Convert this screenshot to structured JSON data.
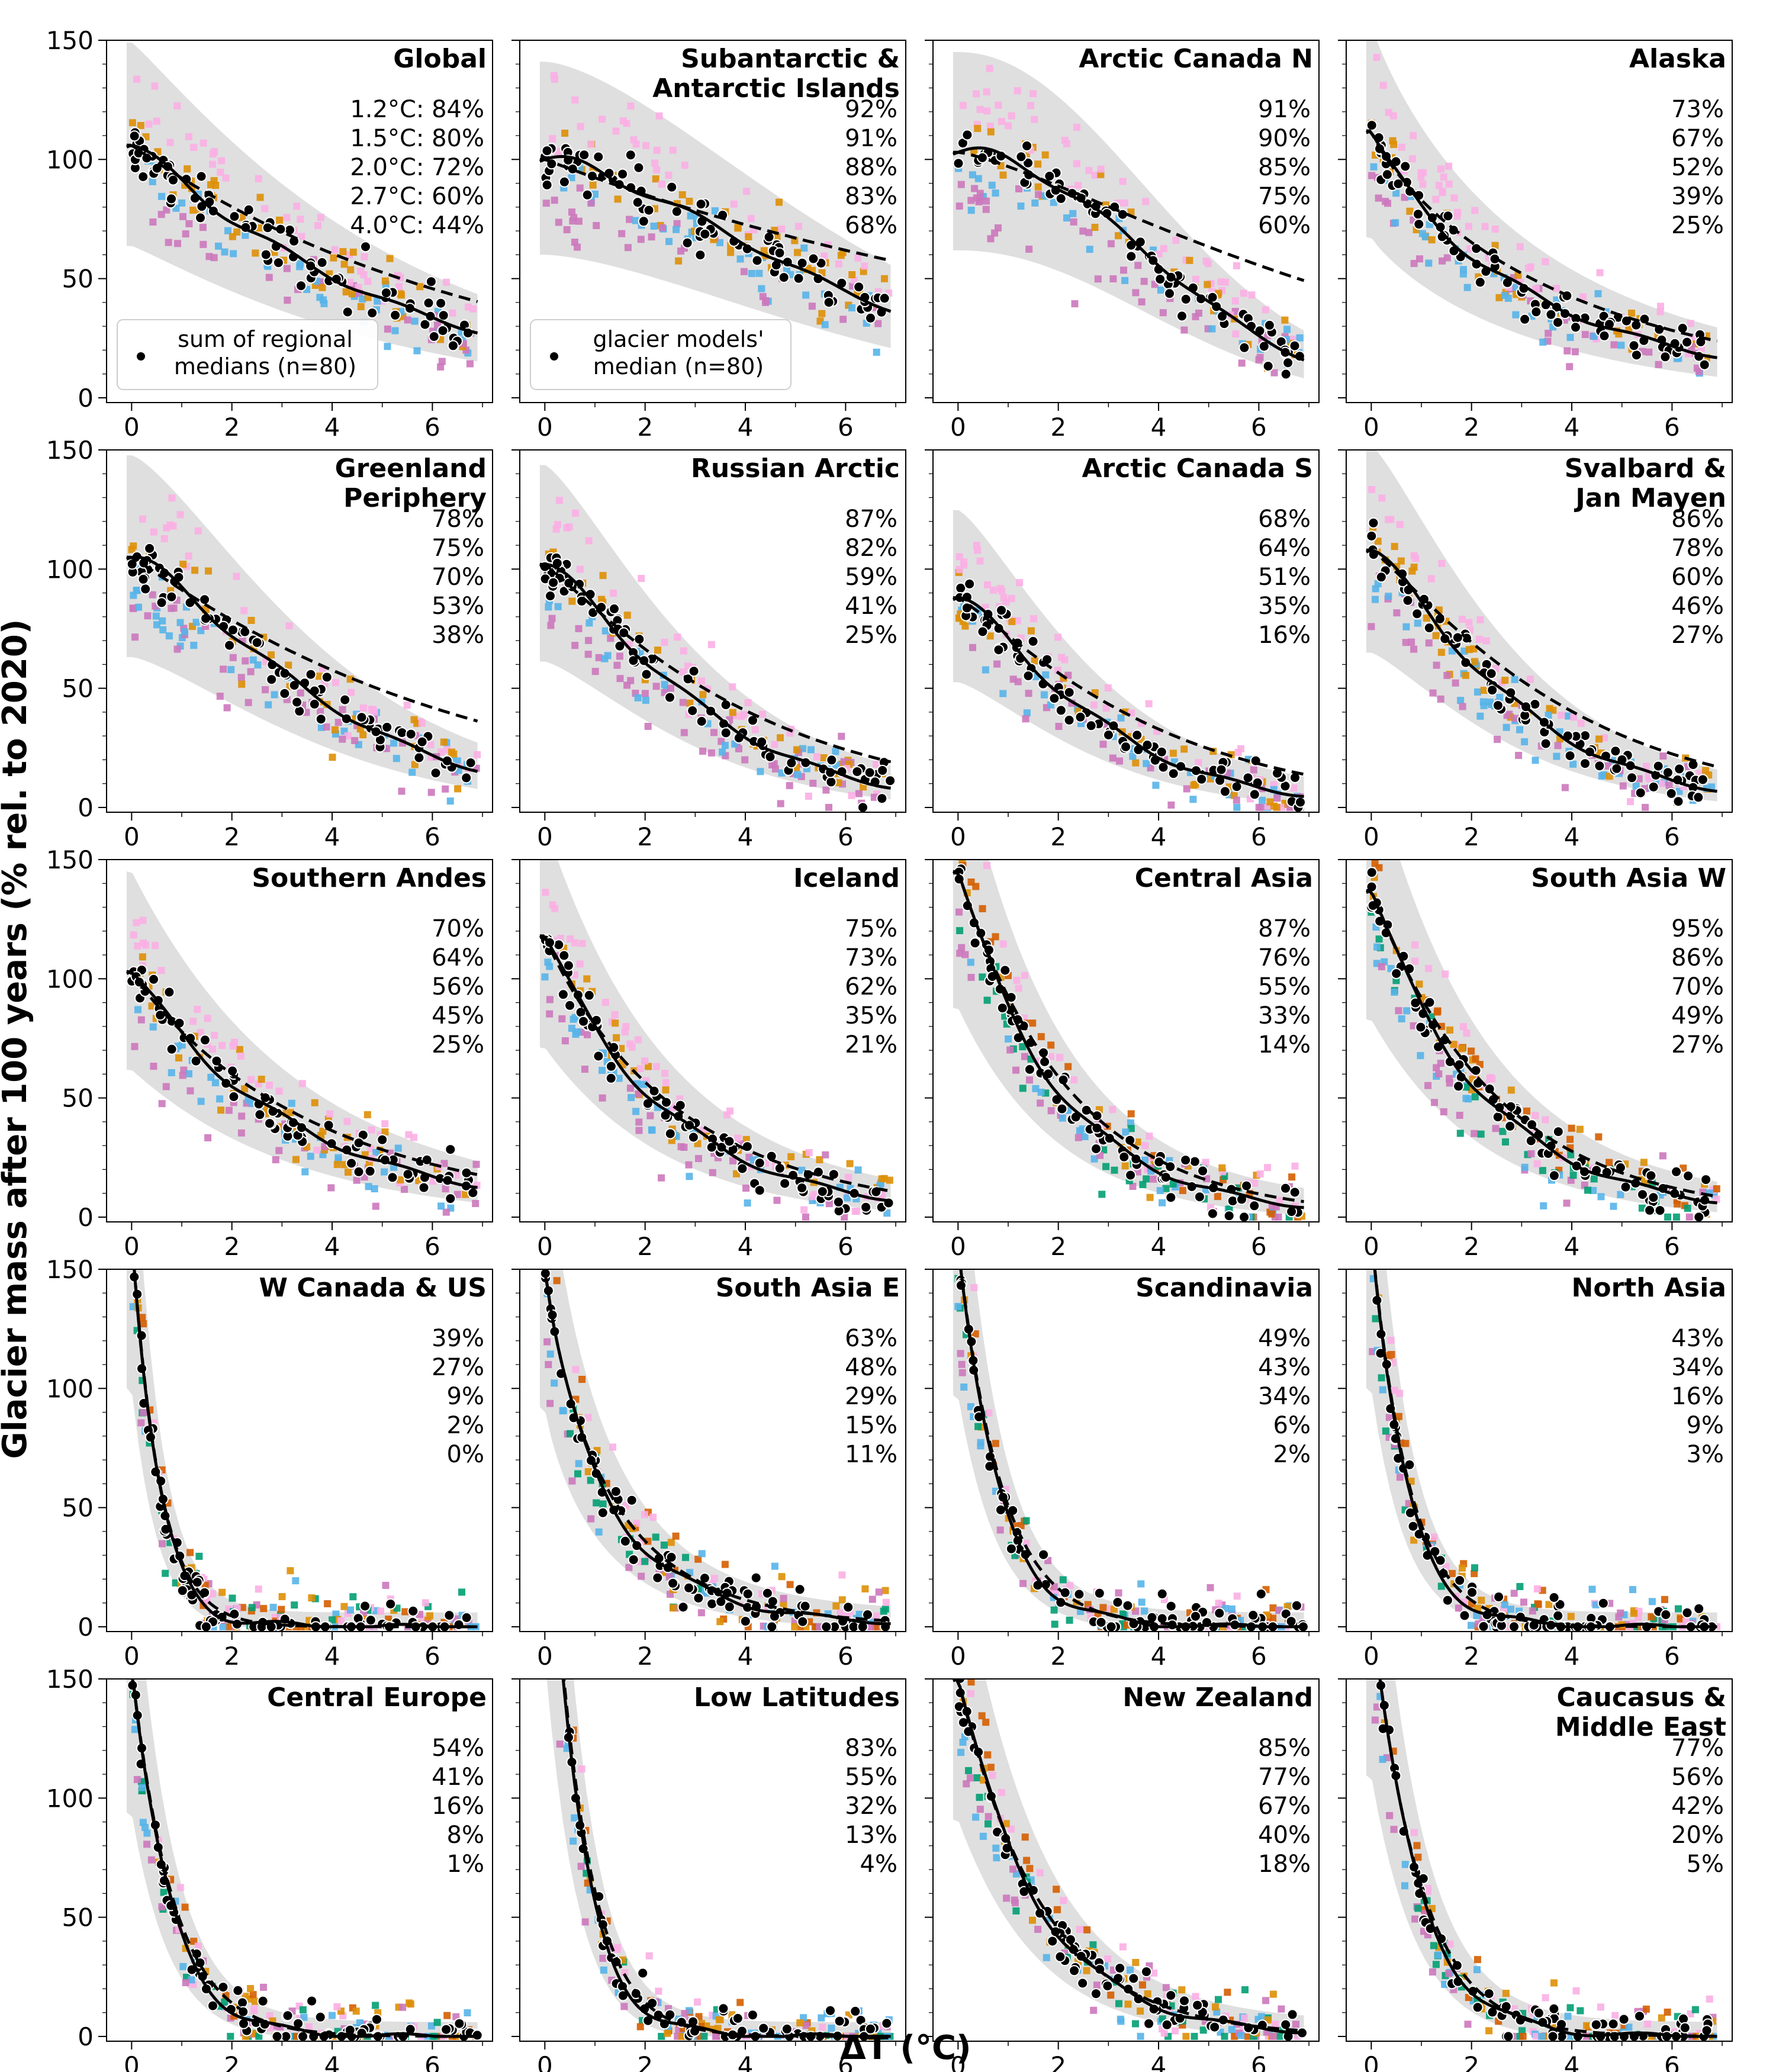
{
  "chart_data": {
    "type": "scatter",
    "xlabel": "ΔT (°C)",
    "ylabel": "Glacier mass after 100 years (% rel. to 2020)",
    "xlim": [
      -0.5,
      7.2
    ],
    "ylim": [
      -2,
      150
    ],
    "xticks": [
      0,
      2,
      4,
      6
    ],
    "yticks": [
      0,
      50,
      100,
      150
    ],
    "grid": false,
    "colors": {
      "models": [
        "#56b4e9",
        "#de8f05",
        "#cc78bc",
        "#fbafe4",
        "#029e73",
        "#d55e00",
        "#ece133",
        "#8c564b"
      ],
      "median_points": "#000000",
      "fit_line": "#000000",
      "band": "#d9d9d9"
    },
    "legend": [
      {
        "panel": 0,
        "text_lines": [
          "sum of regional",
          "medians (n=80)"
        ]
      },
      {
        "panel": 1,
        "text_lines": [
          "glacier models'",
          "median (n=80)"
        ]
      }
    ],
    "scenario_labels": [
      "1.2°C",
      "1.5°C",
      "2.0°C",
      "2.7°C",
      "4.0°C"
    ],
    "panels": [
      {
        "title_lines": [
          "Global"
        ],
        "pct": [
          "1.2°C: 84%",
          "1.5°C: 80%",
          "2.0°C: 72%",
          "2.7°C: 60%",
          "4.0°C: 44%"
        ],
        "start": 106,
        "k": 0.16,
        "p": 1.1,
        "dash_k": 0.14,
        "dash_p": 1.0
      },
      {
        "title_lines": [
          "Subantarctic &",
          "Antarctic Islands"
        ],
        "pct": [
          "92%",
          "91%",
          "88%",
          "83%",
          "68%"
        ],
        "start": 100,
        "k": 0.05,
        "p": 1.55,
        "dash_k": 0.08,
        "dash_p": 1.0
      },
      {
        "title_lines": [
          "Arctic Canada N"
        ],
        "pct": [
          "91%",
          "90%",
          "85%",
          "75%",
          "60%"
        ],
        "start": 103,
        "k": 0.035,
        "p": 2.05,
        "dash_k": 0.06,
        "dash_p": 1.3
      },
      {
        "title_lines": [
          "Alaska"
        ],
        "pct": [
          "73%",
          "67%",
          "52%",
          "39%",
          "25%"
        ],
        "start": 112,
        "k": 0.34,
        "p": 0.88,
        "dash_k": 0.3,
        "dash_p": 0.85
      },
      {
        "title_lines": [
          "Greenland",
          "Periphery"
        ],
        "pct": [
          "78%",
          "75%",
          "70%",
          "53%",
          "38%"
        ],
        "start": 105,
        "k": 0.14,
        "p": 1.35,
        "dash_k": 0.14,
        "dash_p": 1.05
      },
      {
        "title_lines": [
          "Russian Arctic"
        ],
        "pct": [
          "87%",
          "82%",
          "59%",
          "41%",
          "25%"
        ],
        "start": 102,
        "k": 0.2,
        "p": 1.3,
        "dash_k": 0.2,
        "dash_p": 1.1
      },
      {
        "title_lines": [
          "Arctic Canada S"
        ],
        "pct": [
          "68%",
          "64%",
          "51%",
          "35%",
          "16%"
        ],
        "start": 88,
        "k": 0.23,
        "p": 1.3,
        "dash_k": 0.2,
        "dash_p": 1.15
      },
      {
        "title_lines": [
          "Svalbard &",
          "Jan Mayen"
        ],
        "pct": [
          "86%",
          "78%",
          "60%",
          "46%",
          "27%"
        ],
        "start": 108,
        "k": 0.24,
        "p": 1.25,
        "dash_k": 0.2,
        "dash_p": 1.15
      },
      {
        "title_lines": [
          "Southern Andes"
        ],
        "pct": [
          "70%",
          "64%",
          "56%",
          "45%",
          "25%"
        ],
        "start": 103,
        "k": 0.3,
        "p": 1.0,
        "dash_k": 0.28,
        "dash_p": 0.95
      },
      {
        "title_lines": [
          "Iceland"
        ],
        "pct": [
          "75%",
          "73%",
          "62%",
          "35%",
          "21%"
        ],
        "start": 118,
        "k": 0.4,
        "p": 1.0,
        "dash_k": 0.38,
        "dash_p": 0.95
      },
      {
        "title_lines": [
          "Central Asia"
        ],
        "pct": [
          "87%",
          "76%",
          "55%",
          "33%",
          "14%"
        ],
        "start": 145,
        "k": 0.5,
        "p": 1.0,
        "dash_k": 0.45,
        "dash_p": 1.0
      },
      {
        "title_lines": [
          "South Asia W"
        ],
        "pct": [
          "95%",
          "86%",
          "70%",
          "49%",
          "27%"
        ],
        "start": 137,
        "k": 0.44,
        "p": 1.0,
        "dash_k": 0.4,
        "dash_p": 1.0
      },
      {
        "title_lines": [
          "W Canada & US"
        ],
        "pct": [
          "39%",
          "27%",
          "9%",
          "2%",
          "0%"
        ],
        "start": 165,
        "k": 1.9,
        "p": 1.0,
        "dash_k": 1.8,
        "dash_p": 1.0
      },
      {
        "title_lines": [
          "South Asia E"
        ],
        "pct": [
          "63%",
          "48%",
          "29%",
          "15%",
          "11%"
        ],
        "start": 152,
        "k": 0.85,
        "p": 0.85,
        "dash_k": 0.8,
        "dash_p": 0.85
      },
      {
        "title_lines": [
          "Scandinavia"
        ],
        "pct": [
          "49%",
          "43%",
          "34%",
          "6%",
          "2%"
        ],
        "start": 160,
        "k": 1.25,
        "p": 1.0,
        "dash_k": 1.15,
        "dash_p": 1.0
      },
      {
        "title_lines": [
          "North Asia"
        ],
        "pct": [
          "43%",
          "34%",
          "16%",
          "9%",
          "3%"
        ],
        "start": 165,
        "k": 1.45,
        "p": 1.0,
        "dash_k": 1.35,
        "dash_p": 1.0
      },
      {
        "title_lines": [
          "Central Europe"
        ],
        "pct": [
          "54%",
          "41%",
          "16%",
          "8%",
          "1%"
        ],
        "start": 155,
        "k": 1.3,
        "p": 1.0,
        "dash_k": 1.2,
        "dash_p": 1.0
      },
      {
        "title_lines": [
          "Low Latitudes"
        ],
        "pct": [
          "83%",
          "55%",
          "32%",
          "13%",
          "4%"
        ],
        "start": 260,
        "k": 1.55,
        "p": 1.0,
        "dash_k": 1.45,
        "dash_p": 1.0
      },
      {
        "title_lines": [
          "New Zealand"
        ],
        "pct": [
          "85%",
          "77%",
          "67%",
          "40%",
          "18%"
        ],
        "start": 150,
        "k": 0.62,
        "p": 1.0,
        "dash_k": 0.6,
        "dash_p": 1.0
      },
      {
        "title_lines": [
          "Caucasus &",
          "Middle East"
        ],
        "pct": [
          "77%",
          "56%",
          "42%",
          "20%",
          "5%"
        ],
        "start": 180,
        "k": 1.1,
        "p": 1.0,
        "dash_k": 1.05,
        "dash_p": 1.0
      }
    ]
  }
}
